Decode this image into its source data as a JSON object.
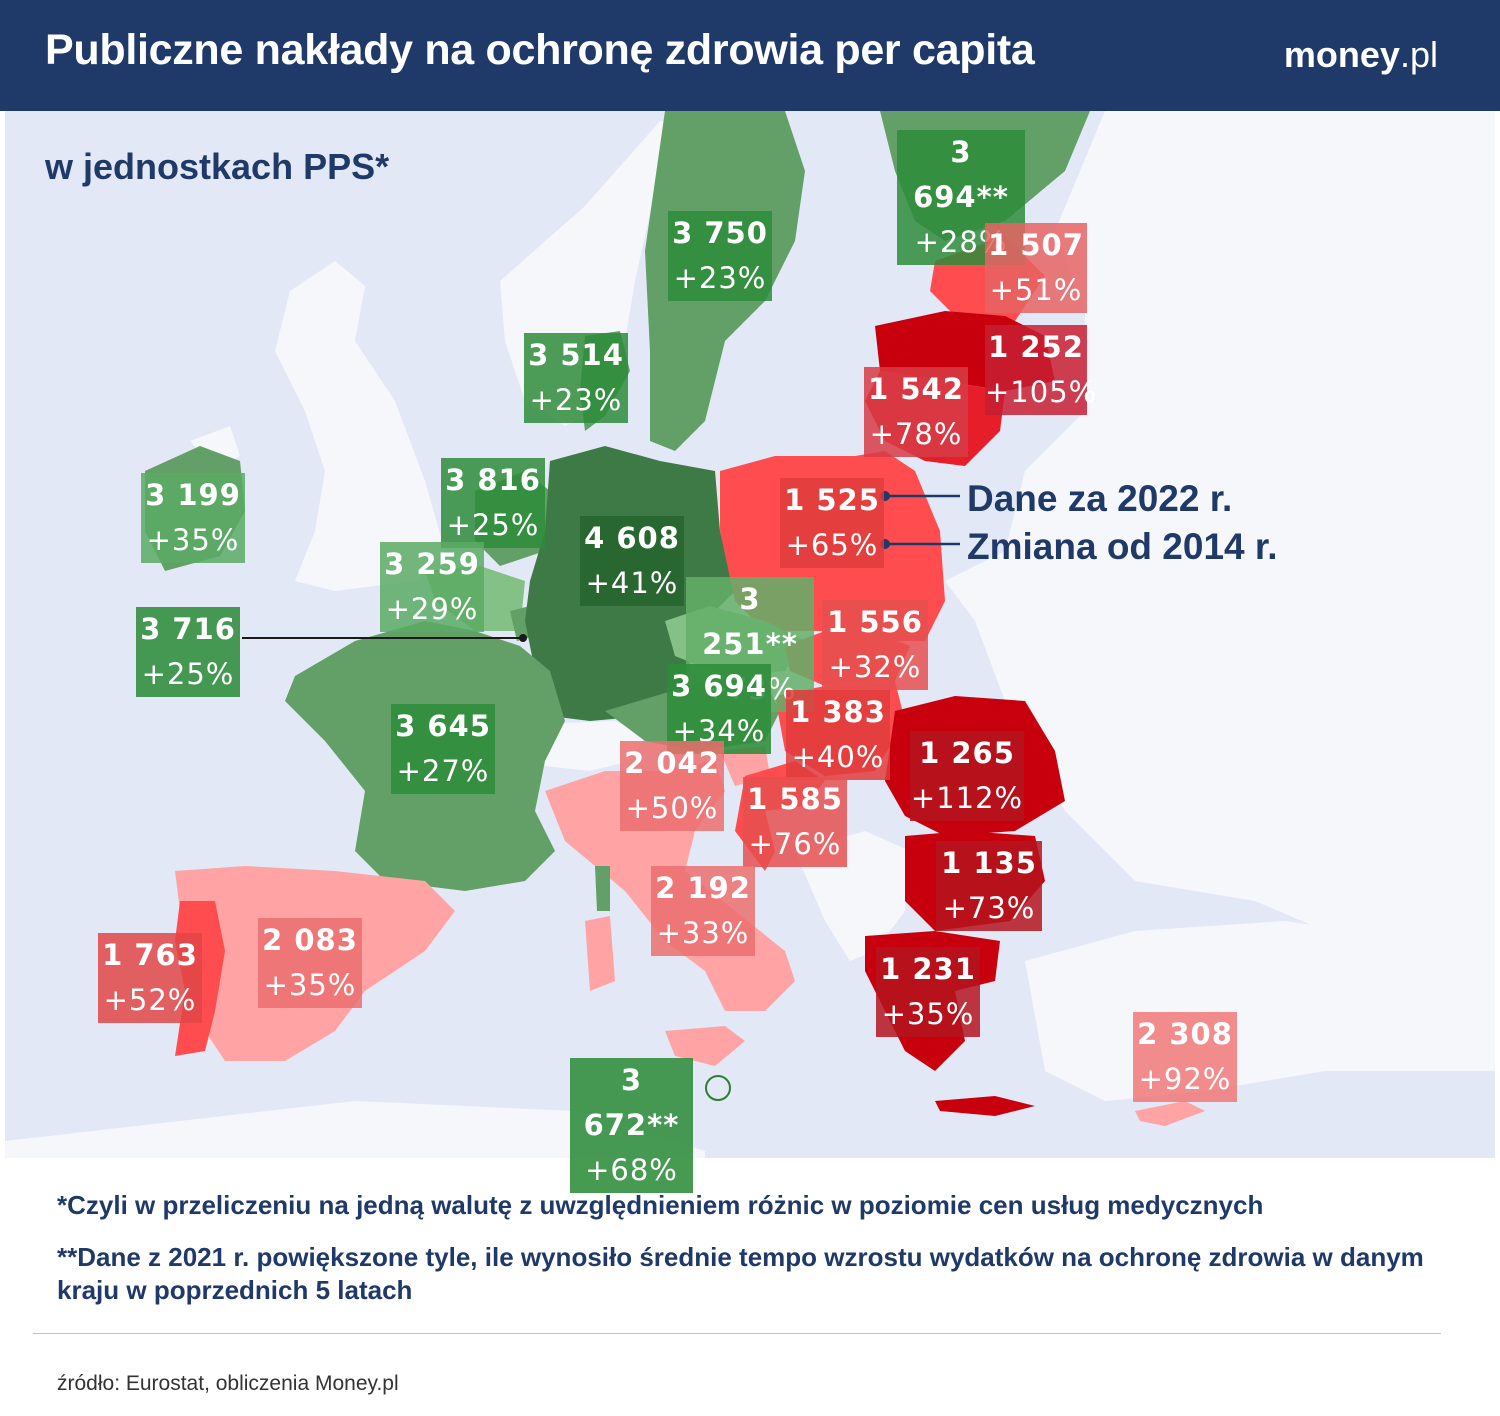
{
  "header": {
    "title": "Publiczne nakłady na ochronę zdrowia per capita",
    "logo_bold": "money",
    "logo_rest": ".pl"
  },
  "subtitle": "w jednostkach PPS*",
  "legend": {
    "value_label": "Dane za 2022 r.",
    "change_label": "Zmiana od 2014 r."
  },
  "colors": {
    "header": "#1f3a68",
    "sea": "#e2e8f5",
    "non_eu_land": "#f6f7fb",
    "green_dark": "#3e7a45",
    "green_mid": "#62a067",
    "green_light": "#84c187",
    "red_dark": "#c8000e",
    "red_mid": "#e51e2a",
    "red": "#ff4c4f",
    "red_light": "#ffa3a4"
  },
  "countries": [
    {
      "id": "finland",
      "value": "3 694**",
      "change": "+28%"
    },
    {
      "id": "sweden",
      "value": "3 750",
      "change": "+23%"
    },
    {
      "id": "estonia",
      "value": "1 507",
      "change": "+51%"
    },
    {
      "id": "latvia",
      "value": "1 252",
      "change": "+105%"
    },
    {
      "id": "lithuania",
      "value": "1 542",
      "change": "+78%"
    },
    {
      "id": "denmark",
      "value": "3 514",
      "change": "+23%"
    },
    {
      "id": "ireland",
      "value": "3 199",
      "change": "+35%"
    },
    {
      "id": "netherlands",
      "value": "3 816",
      "change": "+25%"
    },
    {
      "id": "germany",
      "value": "4 608",
      "change": "+41%"
    },
    {
      "id": "poland",
      "value": "1 525",
      "change": "+65%"
    },
    {
      "id": "belgium",
      "value": "3 259",
      "change": "+29%"
    },
    {
      "id": "luxembourg",
      "value": "3 716",
      "change": "+25%"
    },
    {
      "id": "czechia",
      "value": "3 251**",
      "change": "+73%"
    },
    {
      "id": "slovakia",
      "value": "1 556",
      "change": "+32%"
    },
    {
      "id": "austria",
      "value": "3 694",
      "change": "+34%"
    },
    {
      "id": "hungary",
      "value": "1 383",
      "change": "+40%"
    },
    {
      "id": "france",
      "value": "3 645",
      "change": "+27%"
    },
    {
      "id": "romania",
      "value": "1 265",
      "change": "+112%"
    },
    {
      "id": "slovenia",
      "value": "2 042",
      "change": "+50%"
    },
    {
      "id": "croatia",
      "value": "1 585",
      "change": "+76%"
    },
    {
      "id": "bulgaria",
      "value": "1 135",
      "change": "+73%"
    },
    {
      "id": "italy",
      "value": "2 192",
      "change": "+33%"
    },
    {
      "id": "spain",
      "value": "2 083",
      "change": "+35%"
    },
    {
      "id": "portugal",
      "value": "1 763",
      "change": "+52%"
    },
    {
      "id": "greece",
      "value": "1 231",
      "change": "+35%"
    },
    {
      "id": "cyprus",
      "value": "2 308",
      "change": "+92%"
    },
    {
      "id": "malta",
      "value": "3 672**",
      "change": "+68%"
    }
  ],
  "notes": {
    "note1": "*Czyli w przeliczeniu na jedną walutę z uwzględnieniem różnic w poziomie cen usług medycznych",
    "note2": "**Dane z 2021 r. powiększone tyle, ile wynosiło średnie tempo wzrostu wydatków na ochronę zdrowia w danym kraju w poprzednich 5 latach"
  },
  "source": "źródło: Eurostat, obliczenia Money.pl"
}
